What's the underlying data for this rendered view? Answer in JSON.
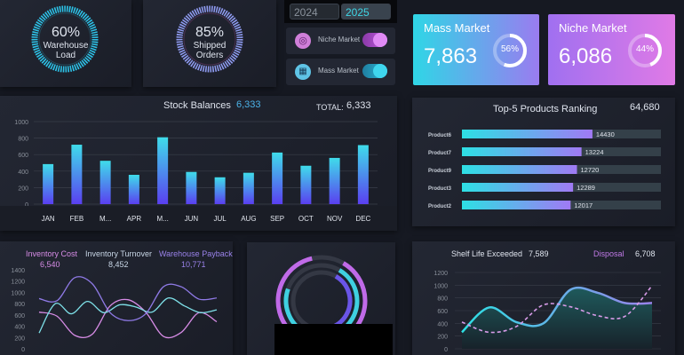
{
  "gauges": [
    {
      "value": "60%",
      "label1": "Warehouse",
      "label2": "Load",
      "percent": 60,
      "color": "#2ec3e8"
    },
    {
      "value": "85%",
      "label1": "Shipped",
      "label2": "Orders",
      "percent": 85,
      "color": "#8f7cf0"
    }
  ],
  "years": {
    "options": [
      "2024",
      "2025"
    ],
    "selected": "2025"
  },
  "toggles": [
    {
      "label": "Niche Market",
      "icon": "target-icon",
      "on": true,
      "color": "#c15ae0"
    },
    {
      "label": "Mass Market",
      "icon": "store-icon",
      "on": true,
      "color": "#2bb8d8"
    }
  ],
  "cards": [
    {
      "title": "Mass Market",
      "value": "7,863",
      "percent_label": "56%",
      "percent": 56
    },
    {
      "title": "Niche Market",
      "value": "6,086",
      "percent_label": "44%",
      "percent": 44
    }
  ],
  "stock": {
    "title": "Stock Balances",
    "title_value": "6,333",
    "total_label": "TOTAL:",
    "total_value": "6,333"
  },
  "top5": {
    "title": "Top-5 Products Ranking",
    "total": "64,680"
  },
  "kpis": [
    {
      "label": "Inventory Cost",
      "value": "6,540",
      "color": "#d78ce6"
    },
    {
      "label": "Inventory Turnover",
      "value": "8,452",
      "color": "#c8d6e6"
    },
    {
      "label": "Warehouse Payback",
      "value": "10,771",
      "color": "#9a82ea"
    }
  ],
  "shelf": {
    "label1": "Shelf Life Exceeded",
    "value1": "7,589",
    "label2": "Disposal",
    "value2": "6,708"
  },
  "chart_data": [
    {
      "type": "bar",
      "categories": [
        "JAN",
        "FEB",
        "M...",
        "APR",
        "M...",
        "JUN",
        "JUL",
        "AUG",
        "SEP",
        "OCT",
        "NOV",
        "DEC"
      ],
      "values": [
        485,
        720,
        525,
        355,
        810,
        390,
        325,
        380,
        625,
        465,
        560,
        715
      ],
      "ylim": [
        0,
        1000
      ],
      "yticks": [
        "0",
        "200",
        "400",
        "600",
        "800",
        "1000"
      ],
      "grid": true
    },
    {
      "type": "bar",
      "orientation": "horizontal",
      "categories": [
        "Product6",
        "Product7",
        "Product9",
        "Product3",
        "Product2"
      ],
      "values": [
        14430,
        13224,
        12720,
        12289,
        12017
      ],
      "value_labels": [
        "14430",
        "13224",
        "12720",
        "12289",
        "12017"
      ],
      "xlim": [
        0,
        22000
      ]
    },
    {
      "type": "line",
      "ylim": [
        0,
        1400
      ],
      "yticks": [
        "0",
        "200",
        "400",
        "600",
        "800",
        "1000",
        "1200",
        "1400"
      ],
      "series": [
        {
          "name": "Inventory Cost",
          "color": "#d78ce6",
          "values": [
            650,
            580,
            240,
            260,
            760,
            870,
            650,
            220,
            290,
            640,
            480
          ]
        },
        {
          "name": "Inventory Turnover",
          "color": "#7ee0e8",
          "values": [
            280,
            800,
            620,
            840,
            640,
            780,
            740,
            650,
            900,
            760,
            640,
            690
          ]
        },
        {
          "name": "Warehouse Payback",
          "color": "#8f7ae6",
          "values": [
            890,
            850,
            1260,
            1150,
            640,
            500,
            620,
            1100,
            1100,
            880,
            900
          ]
        }
      ]
    },
    {
      "type": "radial",
      "rings": [
        {
          "percent": 88,
          "color": "#c06ae8"
        },
        {
          "percent": 72,
          "color": "#3fd0e0"
        },
        {
          "percent": 40,
          "color": "#6a55e8"
        }
      ]
    },
    {
      "type": "area",
      "ylim": [
        0,
        1200
      ],
      "yticks": [
        "0",
        "200",
        "400",
        "600",
        "800",
        "1000",
        "1200"
      ],
      "series": [
        {
          "name": "Shelf Life Exceeded",
          "values": [
            260,
            650,
            420,
            400,
            930,
            880,
            720,
            720
          ]
        },
        {
          "name": "Disposal",
          "style": "dashed",
          "color": "#d79be8",
          "values": [
            420,
            260,
            350,
            690,
            660,
            520,
            510,
            990
          ]
        }
      ]
    }
  ]
}
